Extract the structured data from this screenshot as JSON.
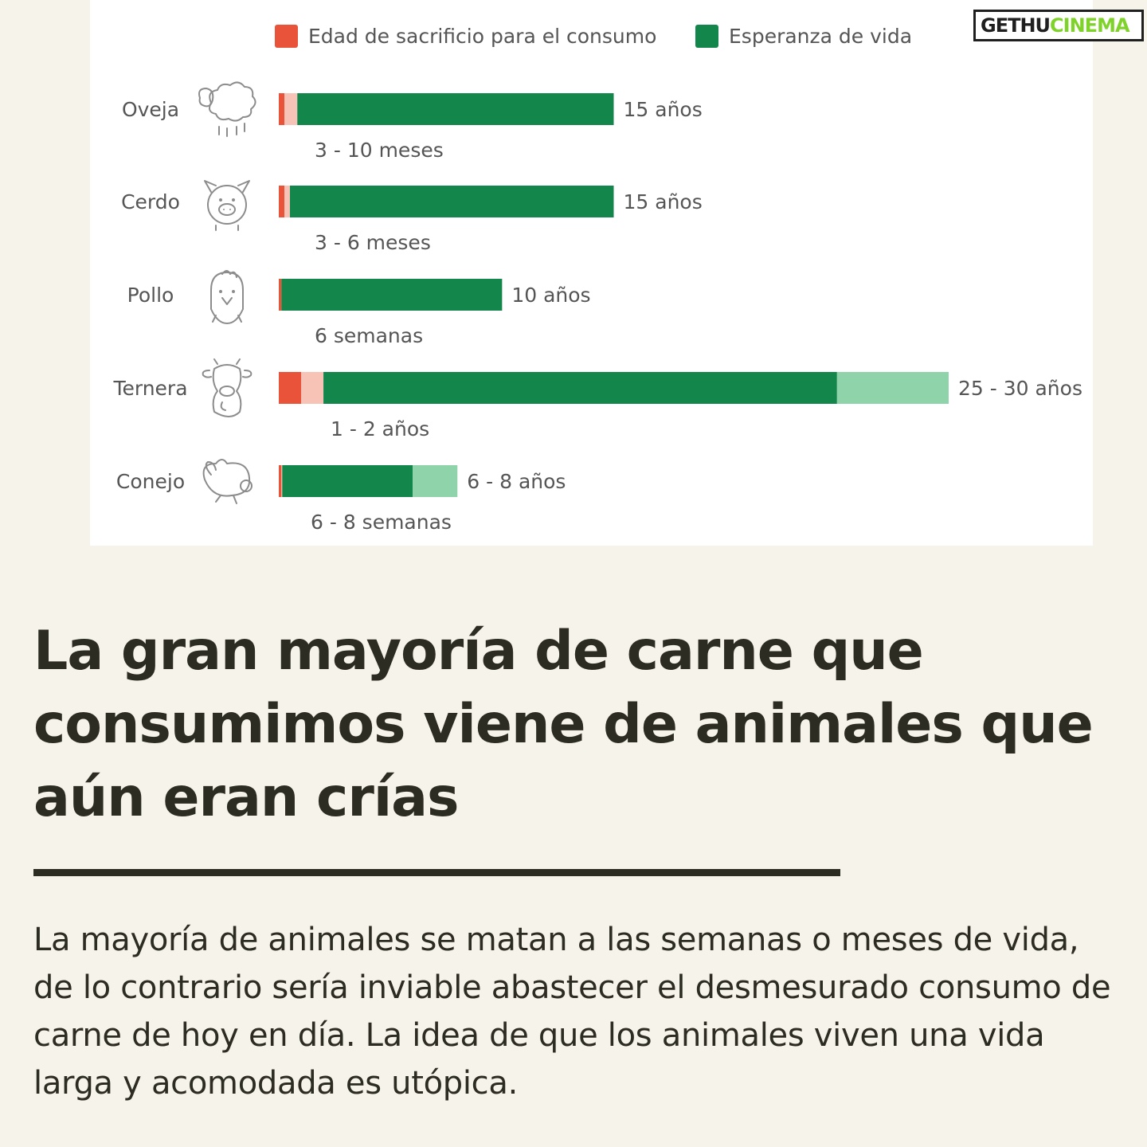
{
  "chart_data": {
    "type": "bar",
    "title": "",
    "unit": "años",
    "legend": [
      {
        "name": "Edad de sacrificio para el consumo",
        "color": "#e8533a"
      },
      {
        "name": "Esperanza de vida",
        "color": "#13864b"
      }
    ],
    "legend_position": "top",
    "colors": {
      "slaughter": "#e8533a",
      "slaughter_range": "#f8c3b7",
      "lifespan": "#13864b",
      "lifespan_range": "#8fd3aa"
    },
    "xlim": [
      0,
      30
    ],
    "categories": [
      "Oveja",
      "Cerdo",
      "Pollo",
      "Ternera",
      "Conejo"
    ],
    "icons": [
      "sheep-icon",
      "pig-icon",
      "chicken-icon",
      "calf-icon",
      "rabbit-icon"
    ],
    "slaughter_years": [
      [
        0.25,
        0.83
      ],
      [
        0.25,
        0.5
      ],
      [
        0.115,
        0.115
      ],
      [
        1,
        2
      ],
      [
        0.115,
        0.154
      ]
    ],
    "lifespan_years": [
      [
        15,
        15
      ],
      [
        15,
        15
      ],
      [
        10,
        10
      ],
      [
        25,
        30
      ],
      [
        6,
        8
      ]
    ],
    "slaughter_labels": [
      "3 - 10 meses",
      "3 - 6 meses",
      "6 semanas",
      "1 - 2 años",
      "6 - 8 semanas"
    ],
    "lifespan_labels": [
      "15 años",
      "15 años",
      "10 años",
      "25 - 30 años",
      "6 - 8 años"
    ]
  },
  "watermark": {
    "part1": "GETHU",
    "part2": "CINEMA"
  },
  "headline": "La gran mayoría de carne que consumimos viene de animales que aún eran crías",
  "body": "La mayoría de animales se matan a las semanas o meses de vida, de lo contrario sería inviable abastecer el desmesurado consumo de carne de hoy en día. La idea de que los animales viven una vida larga y acomodada es utópica."
}
